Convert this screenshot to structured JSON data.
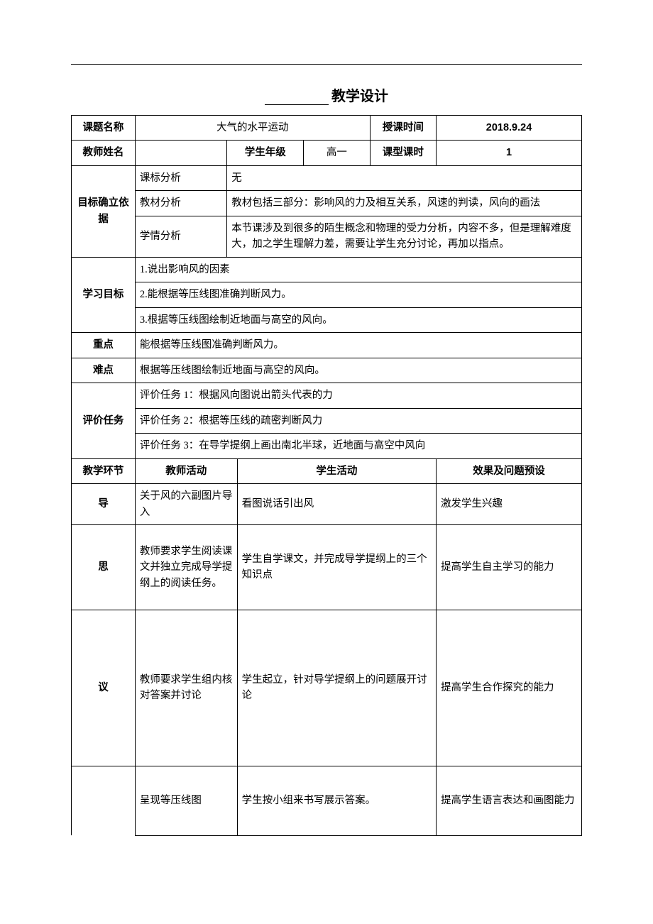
{
  "title_suffix": "教学设计",
  "header": {
    "topic_label": "课题名称",
    "topic_value": "大气的水平运动",
    "time_label": "授课时间",
    "time_value": "2018.9.24",
    "teacher_label": "教师姓名",
    "teacher_value": "",
    "grade_label": "学生年级",
    "grade_value": "高一",
    "type_label": "课型课时",
    "type_value": "1"
  },
  "basis": {
    "section_label": "目标确立依据",
    "rows": [
      {
        "label": "课标分析",
        "content": "无"
      },
      {
        "label": "教材分析",
        "content": "教材包括三部分：影响风的力及相互关系，风速的判读，风向的画法"
      },
      {
        "label": "学情分析",
        "content": "本节课涉及到很多的陌生概念和物理的受力分析，内容不多，但是理解难度大，加之学生理解力差，需要让学生充分讨论，再加以指点。"
      }
    ]
  },
  "objectives": {
    "label": "学习目标",
    "items": [
      "1.说出影响风的因素",
      "2.能根据等压线图准确判断风力。",
      "3.根据等压线图绘制近地面与高空的风向。"
    ]
  },
  "keypoint": {
    "label": "重点",
    "content": "能根据等压线图准确判断风力。"
  },
  "difficulty": {
    "label": "难点",
    "content": "根据等压线图绘制近地面与高空的风向。"
  },
  "eval": {
    "label": "评价任务",
    "items": [
      "评价任务 1：根据风向图说出箭头代表的力",
      "评价任务 2：根据等压线的疏密判断风力",
      "评价任务 3：在导学提纲上画出南北半球，近地面与高空中风向"
    ]
  },
  "process_header": {
    "phase": "教学环节",
    "teacher": "教师活动",
    "student": "学生活动",
    "effect": "效果及问题预设"
  },
  "process": [
    {
      "phase": "导",
      "teacher": "关于风的六副图片导入",
      "student": "看图说话引出风",
      "effect": "激发学生兴趣",
      "height": ""
    },
    {
      "phase": "思",
      "teacher": "教师要求学生阅读课文并独立完成导学提纲上的阅读任务。",
      "student": "学生自学课文，并完成导学提纲上的三个知识点",
      "effect": "提高学生自主学习的能力",
      "height": "tall-1"
    },
    {
      "phase": "议",
      "teacher": "教师要求学生组内核对答案并讨论",
      "student": "学生起立，针对导学提纲上的问题展开讨论",
      "effect": "提高学生合作探究的能力",
      "height": "tall-2"
    },
    {
      "phase": "",
      "teacher": "呈现等压线图",
      "student": "学生按小组来书写展示答案。",
      "effect": "提高学生语言表达和画图能力",
      "height": "tall-3"
    }
  ]
}
